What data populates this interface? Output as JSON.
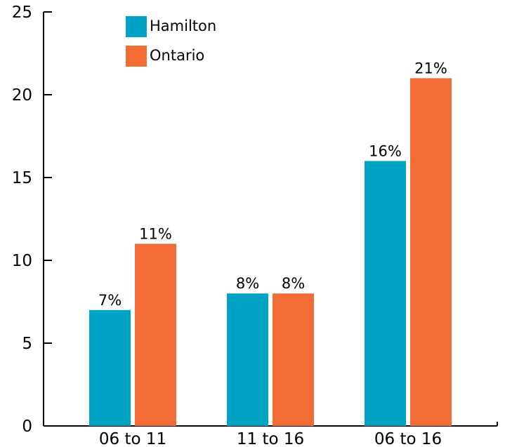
{
  "chart_data": {
    "type": "bar",
    "categories": [
      "06 to 11",
      "11 to 16",
      "06 to 16"
    ],
    "series": [
      {
        "name": "Hamilton",
        "values": [
          7,
          8,
          16
        ],
        "labels": [
          "7%",
          "8%",
          "16%"
        ],
        "color": "#00a3c4"
      },
      {
        "name": "Ontario",
        "values": [
          11,
          8,
          21
        ],
        "labels": [
          "11%",
          "8%",
          "21%"
        ],
        "color": "#f26d35"
      }
    ],
    "ylim": [
      0,
      25
    ],
    "yticks": [
      "0",
      "5",
      "10",
      "15",
      "20",
      "25"
    ],
    "title": "",
    "xlabel": "",
    "ylabel": "",
    "grid": false,
    "legend_position": "top-left"
  }
}
